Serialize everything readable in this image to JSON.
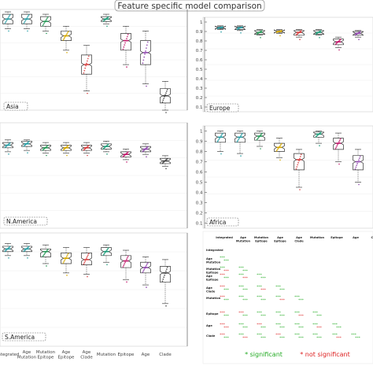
{
  "title": "Feature specific model comparison",
  "chart_data": [
    {
      "type": "boxplot",
      "region": "Asia",
      "categories": [
        "Integrated",
        "Age Mutation",
        "Mutation Epitope",
        "Age Epitope",
        "Age Clade",
        "Mutation",
        "Epitope",
        "Age",
        "Clade"
      ],
      "medians": [
        0.93,
        0.93,
        0.92,
        0.86,
        0.74,
        0.93,
        0.84,
        0.79,
        0.61
      ],
      "q1": [
        0.91,
        0.91,
        0.9,
        0.84,
        0.7,
        0.92,
        0.8,
        0.74,
        0.58
      ],
      "q3": [
        0.95,
        0.95,
        0.94,
        0.88,
        0.78,
        0.94,
        0.87,
        0.84,
        0.64
      ],
      "whisker_low": [
        0.89,
        0.89,
        0.88,
        0.8,
        0.63,
        0.91,
        0.74,
        0.66,
        0.55
      ],
      "whisker_high": [
        0.96,
        0.96,
        0.95,
        0.9,
        0.82,
        0.95,
        0.9,
        0.88,
        0.67
      ]
    },
    {
      "type": "boxplot",
      "region": "Europe",
      "categories": [
        "Integrated",
        "Age Mutation",
        "Mutation Epitope",
        "Age Epitope",
        "Age Clade",
        "Mutation",
        "Epitope",
        "Age",
        "Clade"
      ],
      "yticks": [
        0.1,
        0.2,
        0.3,
        0.4,
        0.5,
        0.6,
        0.7,
        0.8,
        0.9,
        1.0
      ],
      "ylim": [
        0.05,
        1.05
      ],
      "medians": [
        0.94,
        0.94,
        0.89,
        0.9,
        0.89,
        0.89,
        0.79,
        0.88,
        0.9
      ],
      "q1": [
        0.93,
        0.92,
        0.87,
        0.89,
        0.86,
        0.87,
        0.76,
        0.86,
        0.88
      ],
      "q3": [
        0.95,
        0.95,
        0.91,
        0.91,
        0.91,
        0.91,
        0.82,
        0.9,
        0.92
      ],
      "whisker_low": [
        0.92,
        0.91,
        0.86,
        0.88,
        0.84,
        0.86,
        0.73,
        0.84,
        0.86
      ],
      "whisker_high": [
        0.96,
        0.96,
        0.92,
        0.92,
        0.92,
        0.92,
        0.84,
        0.91,
        0.94
      ]
    },
    {
      "type": "boxplot",
      "region": "N.America",
      "categories": [
        "Integrated",
        "Age Mutation",
        "Mutation Epitope",
        "Age Epitope",
        "Age Clade",
        "Mutation",
        "Epitope",
        "Age",
        "Clade"
      ],
      "medians": [
        0.93,
        0.94,
        0.91,
        0.91,
        0.91,
        0.92,
        0.86,
        0.9,
        0.81
      ],
      "q1": [
        0.91,
        0.92,
        0.89,
        0.89,
        0.89,
        0.9,
        0.84,
        0.88,
        0.79
      ],
      "q3": [
        0.95,
        0.96,
        0.93,
        0.93,
        0.93,
        0.94,
        0.88,
        0.92,
        0.83
      ],
      "whisker_low": [
        0.88,
        0.89,
        0.87,
        0.87,
        0.87,
        0.88,
        0.82,
        0.86,
        0.77
      ],
      "whisker_high": [
        0.97,
        0.97,
        0.95,
        0.95,
        0.95,
        0.96,
        0.9,
        0.94,
        0.85
      ]
    },
    {
      "type": "boxplot",
      "region": "Africa",
      "categories": [
        "Integrated",
        "Age Mutation",
        "Mutation Epitope",
        "Age Epitope",
        "Age Clade",
        "Mutation",
        "Epitope",
        "Age",
        "Clade"
      ],
      "yticks": [
        0.1,
        0.2,
        0.3,
        0.4,
        0.5,
        0.6,
        0.7,
        0.8,
        0.9,
        1.0
      ],
      "ylim": [
        0.05,
        1.05
      ],
      "medians": [
        0.94,
        0.94,
        0.95,
        0.84,
        0.72,
        0.97,
        0.88,
        0.7,
        0.65
      ],
      "q1": [
        0.89,
        0.89,
        0.91,
        0.8,
        0.62,
        0.94,
        0.82,
        0.62,
        0.55
      ],
      "q3": [
        0.98,
        0.98,
        0.98,
        0.88,
        0.78,
        0.99,
        0.93,
        0.76,
        0.72
      ],
      "whisker_low": [
        0.8,
        0.78,
        0.85,
        0.74,
        0.45,
        0.88,
        0.7,
        0.5,
        0.45
      ],
      "whisker_high": [
        1.0,
        1.0,
        1.0,
        0.93,
        0.82,
        1.0,
        0.98,
        0.82,
        0.78
      ]
    },
    {
      "type": "boxplot",
      "region": "S.America",
      "categories": [
        "Integrated",
        "Age Mutation",
        "Mutation Epitope",
        "Age Epitope",
        "Age Clade",
        "Mutation",
        "Epitope",
        "Age",
        "Clade"
      ],
      "xtick_labels": [
        "Integrated",
        "Age\nMutation",
        "Mutation\nEpitope",
        "Age\nEpitope",
        "Age\nClade",
        "Mutation",
        "Epitope",
        "Age",
        "Clade"
      ],
      "medians": [
        0.93,
        0.93,
        0.91,
        0.86,
        0.85,
        0.91,
        0.84,
        0.79,
        0.75
      ],
      "q1": [
        0.91,
        0.91,
        0.87,
        0.82,
        0.81,
        0.88,
        0.79,
        0.75,
        0.68
      ],
      "q3": [
        0.95,
        0.95,
        0.93,
        0.9,
        0.9,
        0.94,
        0.88,
        0.83,
        0.8
      ],
      "whisker_low": [
        0.88,
        0.88,
        0.82,
        0.75,
        0.74,
        0.83,
        0.7,
        0.66,
        0.52
      ],
      "whisker_high": [
        0.97,
        0.97,
        0.96,
        0.94,
        0.94,
        0.96,
        0.92,
        0.87,
        0.85
      ]
    },
    {
      "type": "table",
      "columns": [
        "Integrated",
        "Age\nMutation",
        "Mutation\nEpitope",
        "Age\nEpitope",
        "Age\nClade",
        "Mutation",
        "Epitope",
        "Age",
        "Co"
      ],
      "rows": [
        "Integrated",
        "Age\nMutation",
        "Mutation\nEpitope",
        "Age\nEpitope",
        "Age\nClade",
        "Mutation",
        "Epitope",
        "Age",
        "Clade"
      ],
      "legend": {
        "significant": "* significant",
        "not_significant": "* not significant"
      },
      "colors": {
        "significant": "#22aa22",
        "not_significant": "#dd2222"
      }
    }
  ]
}
